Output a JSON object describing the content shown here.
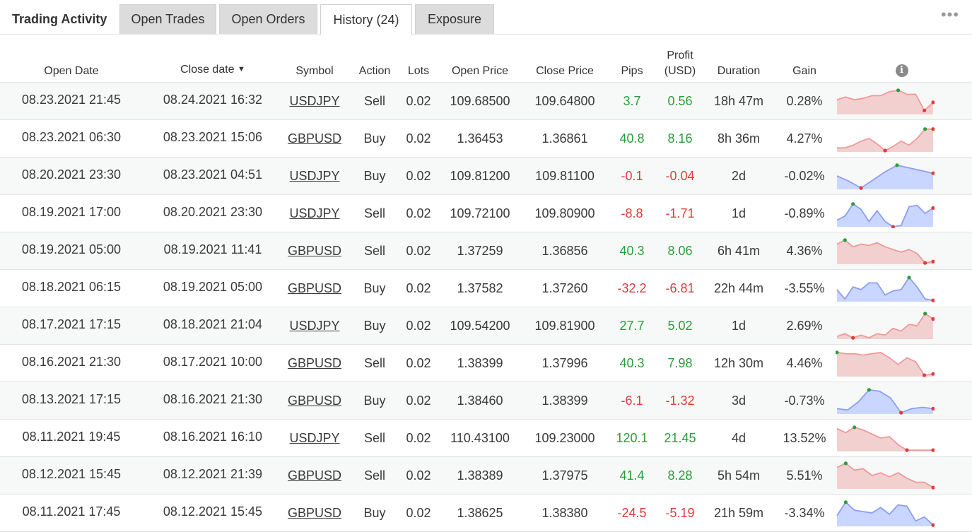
{
  "header": {
    "title": "Trading Activity",
    "tabs": [
      {
        "label": "Open Trades"
      },
      {
        "label": "Open Orders"
      },
      {
        "label": "History (24)"
      },
      {
        "label": "Exposure"
      }
    ],
    "active_tab": "History (24)",
    "more_icon": "more-horizontal-icon"
  },
  "colors": {
    "positive": "#2a9d3a",
    "negative": "#e03a3a",
    "spark_positive_fill": "#c9d6ff",
    "spark_positive_line": "#8f9ef0",
    "spark_negative_fill": "#f3d0d0",
    "spark_negative_line": "#ee9a9a"
  },
  "table": {
    "columns": {
      "open_date": "Open Date",
      "close_date": "Close date",
      "sort_indicator": "▼",
      "symbol": "Symbol",
      "action": "Action",
      "lots": "Lots",
      "open_price": "Open Price",
      "close_price": "Close Price",
      "pips": "Pips",
      "profit_line1": "Profit",
      "profit_line2": "(USD)",
      "duration": "Duration",
      "gain": "Gain",
      "info_icon": "info-icon"
    },
    "rows": [
      {
        "open_date": "08.23.2021 21:45",
        "close_date": "08.24.2021 16:32",
        "symbol": "USDJPY",
        "action": "Sell",
        "lots": "0.02",
        "open_price": "109.68500",
        "close_price": "109.64800",
        "pips": "3.7",
        "profit": "0.56",
        "duration": "18h 47m",
        "gain": "0.28%",
        "spark": [
          0.45,
          0.35,
          0.45,
          0.4,
          0.3,
          0.3,
          0.15,
          0.1,
          0.25,
          0.25,
          0.85,
          0.55
        ]
      },
      {
        "open_date": "08.23.2021 06:30",
        "close_date": "08.23.2021 15:06",
        "symbol": "GBPUSD",
        "action": "Buy",
        "lots": "0.02",
        "open_price": "1.36453",
        "close_price": "1.36861",
        "pips": "40.8",
        "profit": "8.16",
        "duration": "8h 36m",
        "gain": "4.27%",
        "spark": [
          0.85,
          0.85,
          0.75,
          0.6,
          0.5,
          0.7,
          0.95,
          0.8,
          0.6,
          0.75,
          0.5,
          0.15,
          0.15
        ]
      },
      {
        "open_date": "08.20.2021 23:30",
        "close_date": "08.23.2021 04:51",
        "symbol": "USDJPY",
        "action": "Buy",
        "lots": "0.02",
        "open_price": "109.81200",
        "close_price": "109.81100",
        "pips": "-0.1",
        "profit": "-0.04",
        "duration": "2d",
        "gain": "-0.02%",
        "spark": [
          0.5,
          0.7,
          0.95,
          0.65,
          0.35,
          0.1,
          0.2,
          0.3,
          0.4
        ]
      },
      {
        "open_date": "08.19.2021 17:00",
        "close_date": "08.20.2021 23:30",
        "symbol": "USDJPY",
        "action": "Sell",
        "lots": "0.02",
        "open_price": "109.72100",
        "close_price": "109.80900",
        "pips": "-8.8",
        "profit": "-1.71",
        "duration": "1d",
        "gain": "-0.89%",
        "spark": [
          0.75,
          0.6,
          0.15,
          0.35,
          0.8,
          0.4,
          0.8,
          1.0,
          0.95,
          0.25,
          0.2,
          0.5,
          0.3
        ]
      },
      {
        "open_date": "08.19.2021 05:00",
        "close_date": "08.19.2021 11:41",
        "symbol": "GBPUSD",
        "action": "Sell",
        "lots": "0.02",
        "open_price": "1.37259",
        "close_price": "1.36856",
        "pips": "40.3",
        "profit": "8.06",
        "duration": "6h 41m",
        "gain": "4.36%",
        "spark": [
          0.25,
          0.1,
          0.35,
          0.25,
          0.3,
          0.2,
          0.35,
          0.45,
          0.55,
          0.45,
          0.6,
          0.95,
          0.9
        ]
      },
      {
        "open_date": "08.18.2021 06:15",
        "close_date": "08.19.2021 05:00",
        "symbol": "GBPUSD",
        "action": "Buy",
        "lots": "0.02",
        "open_price": "1.37582",
        "close_price": "1.37260",
        "pips": "-32.2",
        "profit": "-6.81",
        "duration": "22h 44m",
        "gain": "-3.55%",
        "spark": [
          0.55,
          0.9,
          0.45,
          0.55,
          0.3,
          0.3,
          0.75,
          0.6,
          0.55,
          0.1,
          0.45,
          0.9,
          0.95
        ]
      },
      {
        "open_date": "08.17.2021 17:15",
        "close_date": "08.18.2021 21:04",
        "symbol": "USDJPY",
        "action": "Buy",
        "lots": "0.02",
        "open_price": "109.54200",
        "close_price": "109.81900",
        "pips": "27.7",
        "profit": "5.02",
        "duration": "1d",
        "gain": "2.69%",
        "spark": [
          0.9,
          0.8,
          0.95,
          0.85,
          0.95,
          0.8,
          0.85,
          0.6,
          0.7,
          0.45,
          0.5,
          0.05,
          0.25
        ]
      },
      {
        "open_date": "08.16.2021 21:30",
        "close_date": "08.17.2021 10:00",
        "symbol": "GBPUSD",
        "action": "Sell",
        "lots": "0.02",
        "open_price": "1.38399",
        "close_price": "1.37996",
        "pips": "40.3",
        "profit": "7.98",
        "duration": "12h 30m",
        "gain": "4.46%",
        "spark": [
          0.1,
          0.15,
          0.15,
          0.2,
          0.15,
          0.1,
          0.3,
          0.55,
          0.3,
          0.45,
          0.95,
          0.9
        ]
      },
      {
        "open_date": "08.13.2021 17:15",
        "close_date": "08.16.2021 21:30",
        "symbol": "GBPUSD",
        "action": "Buy",
        "lots": "0.02",
        "open_price": "1.38460",
        "close_price": "1.38399",
        "pips": "-6.1",
        "profit": "-1.32",
        "duration": "3d",
        "gain": "-0.73%",
        "spark": [
          0.8,
          0.85,
          0.55,
          0.1,
          0.15,
          0.4,
          0.95,
          0.8,
          0.75,
          0.8
        ]
      },
      {
        "open_date": "08.11.2021 19:45",
        "close_date": "08.16.2021 16:10",
        "symbol": "USDJPY",
        "action": "Sell",
        "lots": "0.02",
        "open_price": "110.43100",
        "close_price": "109.23000",
        "pips": "120.1",
        "profit": "21.45",
        "duration": "4d",
        "gain": "13.52%",
        "spark": [
          0.15,
          0.3,
          0.1,
          0.2,
          0.35,
          0.5,
          0.45,
          0.75,
          0.95,
          0.95,
          0.95,
          0.95
        ]
      },
      {
        "open_date": "08.12.2021 15:45",
        "close_date": "08.12.2021 21:39",
        "symbol": "GBPUSD",
        "action": "Sell",
        "lots": "0.02",
        "open_price": "1.38389",
        "close_price": "1.37975",
        "pips": "41.4",
        "profit": "8.28",
        "duration": "5h 54m",
        "gain": "5.51%",
        "spark": [
          0.2,
          0.05,
          0.3,
          0.25,
          0.5,
          0.4,
          0.55,
          0.4,
          0.6,
          0.75,
          0.75,
          0.95
        ]
      },
      {
        "open_date": "08.11.2021 17:45",
        "close_date": "08.12.2021 15:45",
        "symbol": "GBPUSD",
        "action": "Buy",
        "lots": "0.02",
        "open_price": "1.38625",
        "close_price": "1.38380",
        "pips": "-24.5",
        "profit": "-5.19",
        "duration": "21h 59m",
        "gain": "-3.34%",
        "spark": [
          0.6,
          0.1,
          0.4,
          0.45,
          0.5,
          0.3,
          0.55,
          0.2,
          0.25,
          0.8,
          0.65,
          0.95
        ]
      }
    ]
  }
}
